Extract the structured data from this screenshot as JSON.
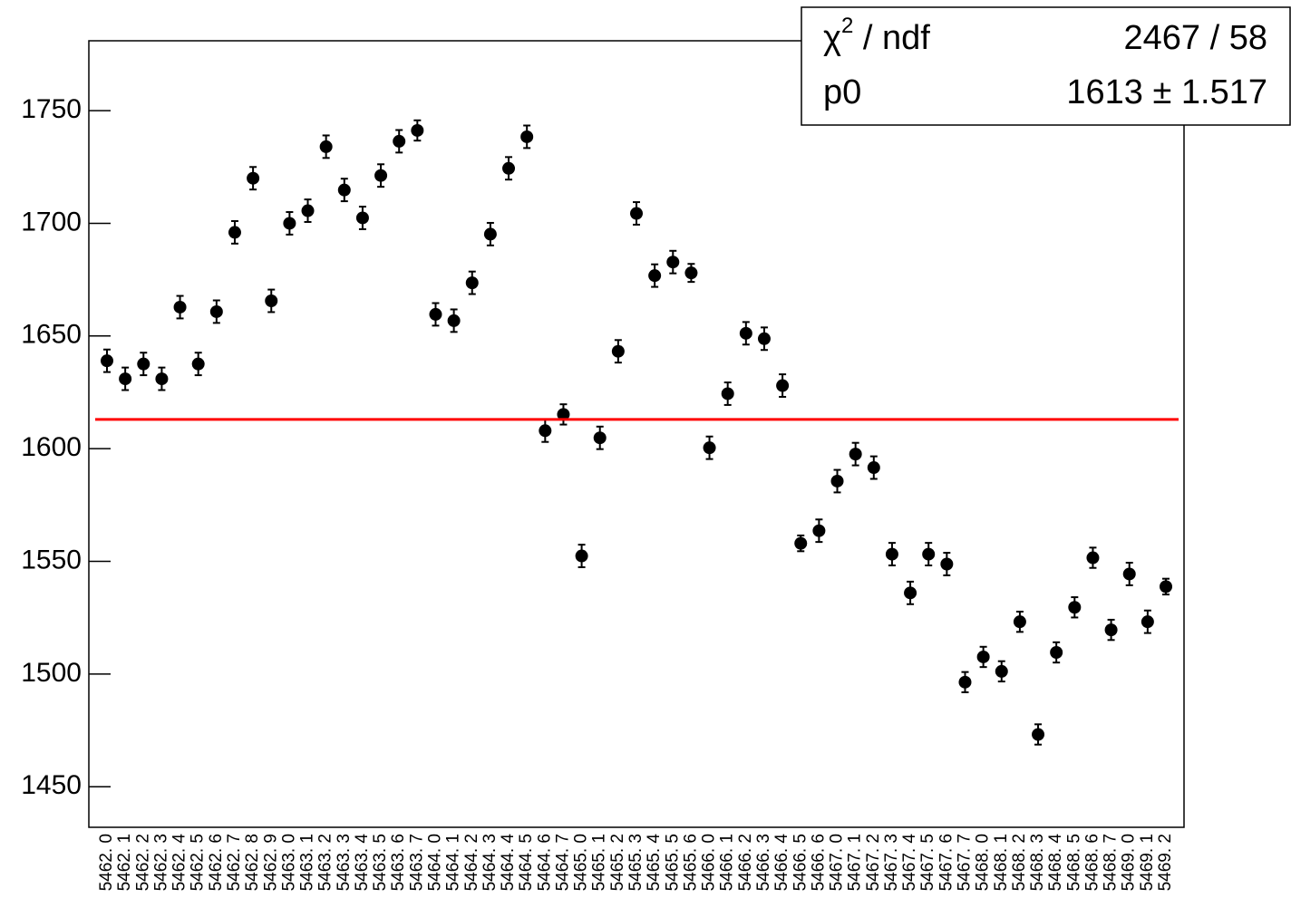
{
  "chart_data": {
    "type": "errorbar",
    "categories": [
      "5462. 0",
      "5462. 1",
      "5462. 2",
      "5462. 3",
      "5462. 4",
      "5462. 5",
      "5462. 6",
      "5462. 7",
      "5462. 8",
      "5462. 9",
      "5463. 0",
      "5463. 1",
      "5463. 2",
      "5463. 3",
      "5463. 4",
      "5463. 5",
      "5463. 6",
      "5463. 7",
      "5464. 0",
      "5464. 1",
      "5464. 2",
      "5464. 3",
      "5464. 4",
      "5464. 5",
      "5464. 6",
      "5464. 7",
      "5465. 0",
      "5465. 1",
      "5465. 2",
      "5465. 3",
      "5465. 4",
      "5465. 5",
      "5465. 6",
      "5466. 0",
      "5466. 1",
      "5466. 2",
      "5466. 3",
      "5466. 4",
      "5466. 5",
      "5466. 6",
      "5467. 0",
      "5467. 1",
      "5467. 2",
      "5467. 3",
      "5467. 4",
      "5467. 5",
      "5467. 6",
      "5467. 7",
      "5468. 0",
      "5468. 1",
      "5468. 2",
      "5468. 3",
      "5468. 4",
      "5468. 5",
      "5468. 6",
      "5468. 7",
      "5469. 0",
      "5469. 1",
      "5469. 2"
    ],
    "series": [
      {
        "color": "#000000",
        "values": [
          1639,
          1631,
          1637.6,
          1631,
          1662.8,
          1637.6,
          1660.8,
          1696,
          1720,
          1665.6,
          1700,
          1705.6,
          1734,
          1714.8,
          1702.4,
          1721.2,
          1736.4,
          1741.2,
          1659.6,
          1656.8,
          1673.6,
          1695.2,
          1724.4,
          1738.4,
          1608,
          1615.2,
          1552.4,
          1604.8,
          1643.2,
          1704.4,
          1676.8,
          1682.8,
          1678,
          1600.4,
          1624.4,
          1651.2,
          1648.8,
          1628,
          1558,
          1563.6,
          1585.6,
          1597.6,
          1591.6,
          1553.2,
          1536,
          1553.2,
          1548.8,
          1496.4,
          1507.6,
          1501.2,
          1523.2,
          1473.2,
          1509.6,
          1529.6,
          1551.6,
          1519.6,
          1544.4,
          1523.2,
          1538.8
        ],
        "errors": [
          5,
          5,
          5,
          5,
          5,
          5,
          5,
          5,
          5,
          5,
          5,
          5,
          5,
          5,
          5,
          5,
          5,
          4.5,
          5,
          5,
          5,
          5,
          5,
          5,
          5,
          4.5,
          5,
          5,
          5,
          5,
          5,
          5,
          4,
          5,
          5,
          5,
          5,
          5,
          3.5,
          5,
          5,
          5,
          5,
          5,
          5,
          5,
          5,
          4.5,
          4.5,
          4.5,
          4.5,
          4.5,
          4.5,
          4.5,
          4.5,
          4.5,
          5,
          5,
          3.5
        ]
      }
    ],
    "fit": {
      "p0": 1613,
      "color": "#ff0000"
    },
    "stats": {
      "chi_symbol": "χ",
      "chi_sup": "2",
      "chi_rest": " / ndf",
      "chi_value": "2467 / 58",
      "p0_label": "p0",
      "p0_value": "1613 ± 1.517"
    },
    "ylim": [
      1432,
      1781
    ],
    "yticks": [
      1450,
      1500,
      1550,
      1600,
      1650,
      1700,
      1750
    ]
  }
}
